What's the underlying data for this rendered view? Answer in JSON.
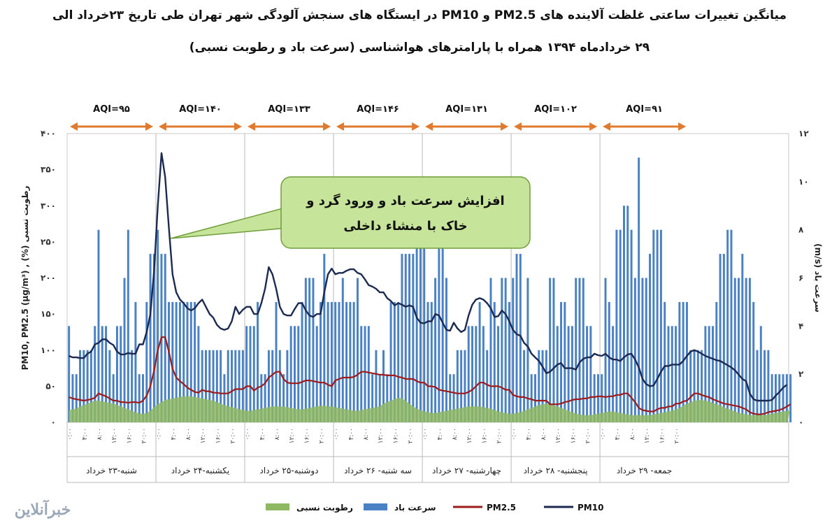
{
  "title_line1": "میانگین تغییرات ساعتی غلظت آلاینده های PM2.5 و PM10 در ایستگاه های سنجش آلودگی شهر تهران طی تاریخ ۲۳خرداد الی",
  "title_line2": "۲۹ خردادماه ۱۳۹۴ همراه با پارامترهای هواشناسی (سرعت باد و رطوبت نسبی)",
  "callout": {
    "line1": "افزایش سرعت باد و ورود گرد و",
    "line2": "خاک با منشاء داخلی"
  },
  "logo_text": "خبرآنلاین",
  "chart_data": {
    "type": "line",
    "title": "",
    "ylabel_left": "PM10, PM2.5 (µg/m³) , (%) رطوبت نسبی",
    "ylabel_right": "(m/s) سرعت باد",
    "ylim_left": [
      0,
      400
    ],
    "ylim_right": [
      0,
      12
    ],
    "yticks_left": [
      "۰",
      "۵۰",
      "۱۰۰",
      "۱۵۰",
      "۲۰۰",
      "۲۵۰",
      "۳۰۰",
      "۳۵۰",
      "۴۰۰"
    ],
    "yticks_right": [
      "۰",
      "۲",
      "۴",
      "۶",
      "۸",
      "۱۰",
      "۱۲"
    ],
    "hour_ticks": [
      "۰:۰۰",
      "۴:۰۰",
      "۸:۰۰",
      "۱۲:۰۰",
      "۱۶:۰۰",
      "۲۰:۰۰"
    ],
    "days": [
      "شنبه-۲۳ خرداد",
      "یکشنبه-۲۴ خرداد",
      "دوشنبه-۲۵ خرداد",
      "سه شنبه- ۲۶ خرداد",
      "چهارشنبه- ۲۷ خرداد",
      "پنجشنبه- ۲۸ خرداد",
      "جمعه- ۲۹ خرداد"
    ],
    "aqi": [
      "AQI=۹۵",
      "AQI=۱۴۰",
      "AQI=۱۳۳",
      "AQI=۱۴۶",
      "AQI=۱۳۱",
      "AQI=۱۰۲",
      "AQI=۹۱"
    ],
    "legend": [
      "PM10",
      "PM2.5",
      "سرعت باد",
      "رطوبت نسبی"
    ],
    "colors": {
      "pm10": "#1c2a52",
      "pm25": "#9e1b1b",
      "wind": "#4a81c4",
      "humidity": "#8fb863",
      "arrow": "#e07a2e",
      "callout_fill": "#c6e59a",
      "callout_stroke": "#6f9e3a"
    },
    "series": [
      {
        "name": "PM10",
        "axis": "left",
        "values": [
          92,
          90,
          90,
          89,
          89,
          95,
          98,
          108,
          110,
          115,
          115,
          110,
          107,
          98,
          94,
          94,
          96,
          95,
          95,
          108,
          108,
          125,
          150,
          210,
          300,
          373,
          340,
          270,
          205,
          180,
          170,
          165,
          158,
          155,
          158,
          165,
          170,
          160,
          150,
          145,
          135,
          130,
          128,
          130,
          140,
          160,
          150,
          156,
          160,
          160,
          150,
          150,
          165,
          185,
          215,
          205,
          185,
          160,
          150,
          148,
          148,
          157,
          165,
          165,
          155,
          148,
          146,
          150,
          150,
          180,
          205,
          213,
          205,
          207,
          207,
          210,
          212,
          212,
          207,
          205,
          198,
          190,
          188,
          185,
          180,
          180,
          172,
          168,
          162,
          165,
          163,
          160,
          162,
          160,
          145,
          138,
          137,
          140,
          140,
          150,
          148,
          138,
          128,
          127,
          138,
          130,
          125,
          128,
          148,
          163,
          170,
          172,
          170,
          165,
          158,
          146,
          147,
          155,
          150,
          140,
          128,
          122,
          120,
          110,
          105,
          95,
          90,
          85,
          77,
          68,
          70,
          75,
          80,
          82,
          75,
          75,
          75,
          73,
          83,
          88,
          90,
          90,
          95,
          93,
          92,
          95,
          90,
          87,
          87,
          85,
          90,
          94,
          95,
          87,
          76,
          60,
          53,
          50,
          51,
          60,
          70,
          78,
          78,
          80,
          80,
          80,
          85,
          92,
          98,
          100,
          98,
          95,
          92,
          90,
          88,
          86,
          85,
          82,
          79,
          76,
          72,
          66,
          60,
          57,
          40,
          32,
          30,
          30,
          30,
          30,
          31,
          37,
          42,
          48,
          52
        ]
      },
      {
        "name": "PM2.5",
        "axis": "left",
        "values": [
          35,
          33,
          32,
          31,
          30,
          31,
          32,
          34,
          40,
          38,
          36,
          33,
          30,
          30,
          28,
          28,
          27,
          28,
          28,
          27,
          30,
          37,
          50,
          72,
          100,
          118,
          118,
          98,
          74,
          62,
          57,
          53,
          48,
          45,
          42,
          41,
          45,
          43,
          43,
          41,
          41,
          40,
          40,
          40,
          43,
          46,
          46,
          46,
          50,
          50,
          44,
          48,
          50,
          54,
          62,
          66,
          70,
          70,
          60,
          55,
          54,
          54,
          54,
          56,
          58,
          58,
          57,
          56,
          55,
          55,
          52,
          50,
          58,
          60,
          62,
          62,
          62,
          63,
          66,
          70,
          70,
          69,
          68,
          67,
          66,
          66,
          65,
          65,
          65,
          63,
          62,
          60,
          60,
          60,
          57,
          55,
          55,
          50,
          50,
          49,
          45,
          44,
          43,
          42,
          41,
          40,
          40,
          40,
          42,
          45,
          50,
          55,
          55,
          52,
          50,
          50,
          50,
          48,
          45,
          45,
          38,
          36,
          35,
          35,
          33,
          32,
          30,
          30,
          30,
          30,
          25,
          25,
          25,
          26,
          28,
          29,
          31,
          32,
          32,
          33,
          33,
          35,
          35,
          36,
          36,
          35,
          36,
          36,
          38,
          38,
          40,
          40,
          34,
          28,
          20,
          17,
          16,
          15,
          15,
          18,
          20,
          20,
          22,
          22,
          26,
          26,
          29,
          30,
          35,
          40,
          40,
          38,
          36,
          35,
          32,
          30,
          28,
          26,
          25,
          24,
          23,
          22,
          20,
          18,
          14,
          12,
          11,
          11,
          12,
          14,
          15,
          16,
          17,
          19,
          22,
          25
        ]
      },
      {
        "name": "سرعت باد",
        "axis": "right",
        "values": [
          4,
          2,
          2,
          3,
          3,
          3,
          3,
          4,
          8,
          4,
          4,
          3,
          2,
          4,
          4,
          6,
          8,
          3,
          5,
          2,
          2,
          5,
          7,
          7,
          8,
          7,
          7,
          5,
          5,
          5,
          5,
          5,
          5,
          5,
          5,
          4,
          3,
          3,
          3,
          3,
          3,
          3,
          2,
          3,
          3,
          3,
          3,
          3,
          4,
          4,
          4,
          5,
          2,
          2,
          3,
          3,
          5,
          3,
          2,
          3,
          4,
          4,
          4,
          5,
          6,
          6,
          6,
          4,
          5,
          7,
          5,
          5,
          5,
          5,
          6,
          5,
          5,
          5,
          6,
          4,
          4,
          4,
          2,
          3,
          2,
          3,
          2,
          5,
          5,
          5,
          7,
          7,
          7,
          7,
          8,
          8,
          8,
          5,
          5,
          6,
          8,
          8,
          6,
          2,
          2,
          3,
          3,
          3,
          4,
          4,
          4,
          5,
          4,
          3,
          6,
          5,
          4,
          6,
          6,
          5,
          6,
          7,
          7,
          3,
          6,
          2,
          2,
          3,
          3,
          3,
          6,
          6,
          4,
          5,
          5,
          4,
          4,
          6,
          6,
          6,
          4,
          4,
          2,
          2,
          2,
          6,
          5,
          4,
          8,
          8,
          9,
          9,
          8,
          6,
          11,
          6,
          6,
          7,
          8,
          8,
          8,
          5,
          4,
          4,
          4,
          5,
          5,
          5,
          3,
          3,
          3,
          3,
          4,
          4,
          4,
          5,
          7,
          7,
          8,
          8,
          6,
          6,
          7,
          6,
          6,
          5,
          3,
          4,
          3,
          3,
          2,
          2,
          2,
          2,
          2,
          2
        ]
      },
      {
        "name": "رطوبت نسبی",
        "axis": "left",
        "values": [
          17,
          18,
          19,
          22,
          24,
          26,
          28,
          30,
          30,
          29,
          28,
          27,
          26,
          24,
          22,
          20,
          18,
          16,
          14,
          12,
          12,
          13,
          16,
          21,
          25,
          28,
          31,
          32,
          33,
          34,
          35,
          36,
          36,
          36,
          35,
          34,
          33,
          32,
          31,
          30,
          28,
          26,
          24,
          22,
          21,
          20,
          18,
          17,
          16,
          16,
          17,
          18,
          19,
          20,
          21,
          22,
          22,
          22,
          22,
          21,
          20,
          19,
          18,
          18,
          19,
          20,
          21,
          22,
          23,
          23,
          22,
          22,
          21,
          20,
          19,
          18,
          17,
          16,
          16,
          17,
          18,
          19,
          20,
          21,
          22,
          26,
          28,
          30,
          32,
          34,
          33,
          30,
          26,
          22,
          19,
          17,
          15,
          14,
          13,
          13,
          14,
          15,
          16,
          17,
          18,
          19,
          20,
          21,
          22,
          22,
          22,
          22,
          21,
          20,
          19,
          17,
          15,
          14,
          13,
          12,
          12,
          13,
          14,
          16,
          18,
          20,
          22,
          24,
          25,
          26,
          25,
          24,
          22,
          20,
          18,
          16,
          14,
          12,
          11,
          10,
          10,
          10,
          11,
          12,
          13,
          14,
          15,
          15,
          14,
          13,
          12,
          11,
          10,
          10,
          10,
          10,
          10,
          10,
          11,
          12,
          13,
          14,
          15,
          16,
          18,
          20,
          23,
          26,
          28,
          30,
          31,
          31,
          30,
          29,
          27,
          25,
          23,
          21,
          19,
          17,
          15,
          13,
          12,
          11,
          10,
          10,
          10,
          10,
          10,
          11,
          12,
          13,
          14,
          15,
          16,
          17
        ]
      }
    ]
  }
}
